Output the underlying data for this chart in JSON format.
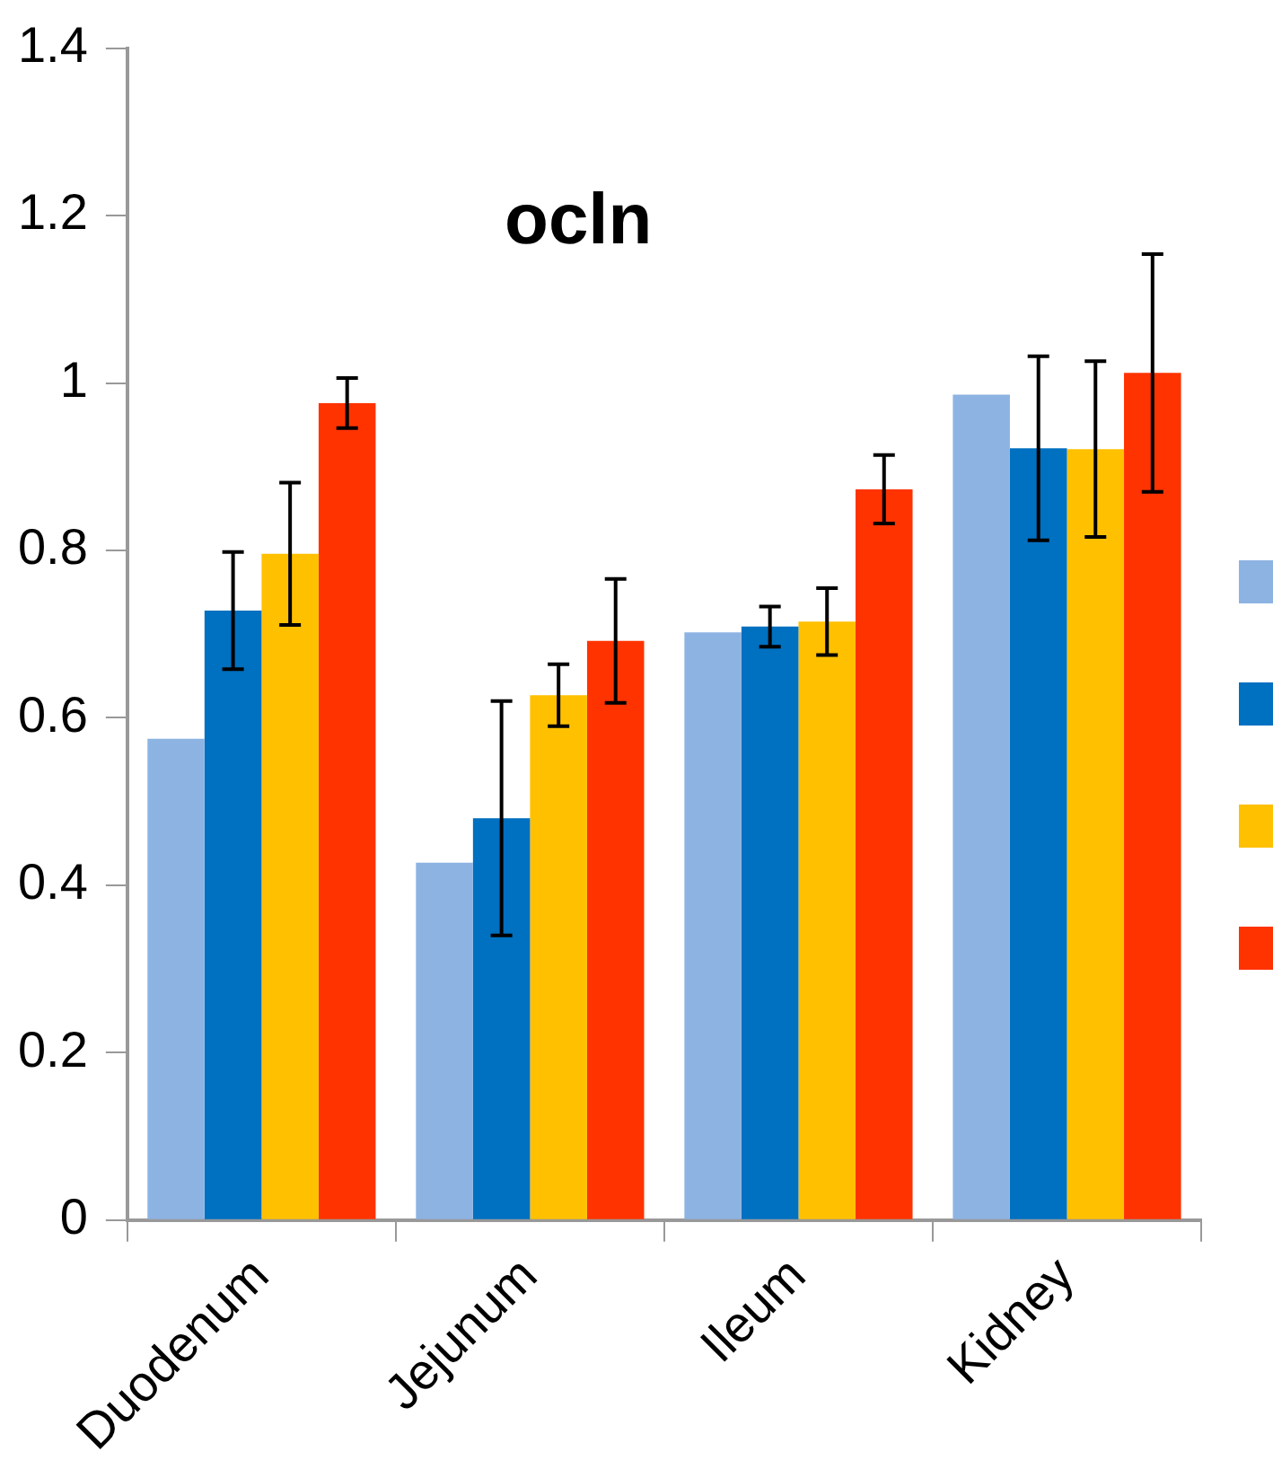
{
  "chart_data": {
    "type": "bar",
    "title": "ocln",
    "categories": [
      "Duodenum",
      "Jejunum",
      "Ileum",
      "Kidney"
    ],
    "series": [
      {
        "color": "#8db3e2",
        "values": [
          0.575,
          0.427,
          0.702,
          0.986
        ]
      },
      {
        "color": "#0070c0",
        "values": [
          0.728,
          0.48,
          0.709,
          0.922
        ],
        "errors": [
          0.07,
          0.14,
          0.024,
          0.11
        ]
      },
      {
        "color": "#ffc000",
        "values": [
          0.796,
          0.627,
          0.715,
          0.921
        ],
        "errors": [
          0.085,
          0.037,
          0.04,
          0.105
        ]
      },
      {
        "color": "#ff3300",
        "values": [
          0.976,
          0.692,
          0.873,
          1.012
        ],
        "errors": [
          0.03,
          0.074,
          0.041,
          0.142
        ]
      }
    ],
    "ylim": [
      0,
      1.4
    ],
    "yticks": [
      0,
      0.2,
      0.4,
      0.6,
      0.8,
      1,
      1.2,
      1.4
    ],
    "grid": false
  }
}
